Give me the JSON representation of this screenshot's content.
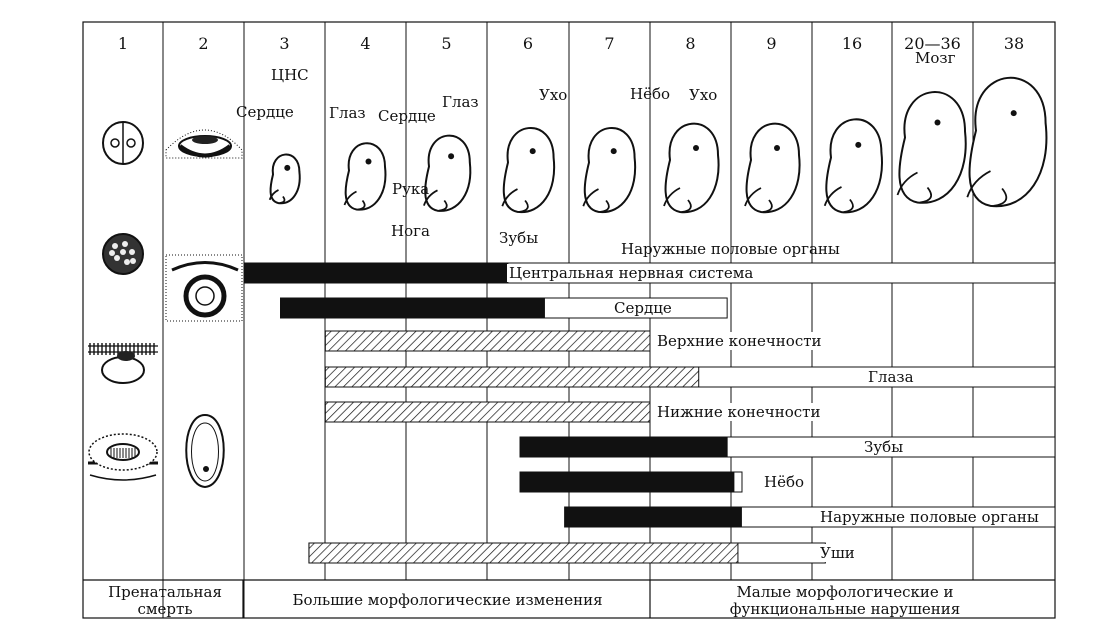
{
  "columns": [
    "1",
    "2",
    "3",
    "4",
    "5",
    "6",
    "7",
    "8",
    "9",
    "16",
    "20—36",
    "38"
  ],
  "annotations": {
    "cns": "ЦНС",
    "heart_3": "Сердце",
    "eye_4": "Глаз",
    "heart_5": "Сердце",
    "eye_5": "Глаз",
    "arm": "Рука",
    "leg": "Нога",
    "ear_6": "Ухо",
    "teeth": "Зубы",
    "palate": "Нёбо",
    "ear_8": "Ухо",
    "brain": "Мозг",
    "genitals": "Наружные половые органы"
  },
  "bars": [
    {
      "label": "Центральная нервная система",
      "critical": [
        3,
        6.25
      ],
      "sensitive_end": 38,
      "critical_style": "solid"
    },
    {
      "label": "Сердце",
      "critical": [
        3.45,
        6.7
      ],
      "sensitive_end": 8.95,
      "critical_style": "solid"
    },
    {
      "label": "Верхние конечности",
      "critical": [
        4,
        8
      ],
      "sensitive_end": 8,
      "critical_style": "hatched"
    },
    {
      "label": "Глаза",
      "critical": [
        4,
        8.6
      ],
      "sensitive_end": 38,
      "critical_style": "hatched"
    },
    {
      "label": "Нижние конечности",
      "critical": [
        4,
        8
      ],
      "sensitive_end": 8,
      "critical_style": "hatched"
    },
    {
      "label": "Зубы",
      "critical": [
        6.4,
        8.95
      ],
      "sensitive_end": 38,
      "critical_style": "solid"
    },
    {
      "label": "Нёбо",
      "critical": [
        6.4,
        9.25
      ],
      "sensitive_end": 9.95,
      "critical_style": "solid"
    },
    {
      "label": "Наружные половые органы",
      "critical": [
        6.95,
        9.9
      ],
      "sensitive_end": 38,
      "critical_style": "solid"
    },
    {
      "label": "Уши",
      "critical": [
        3.8,
        9.6
      ],
      "sensitive_end": 18,
      "critical_style": "hatched"
    }
  ],
  "footer": {
    "prenatal": "Пренатальная смерть",
    "major": "Большие морфологические изменения",
    "minor": "Малые морфологические и функциональные нарушения"
  }
}
